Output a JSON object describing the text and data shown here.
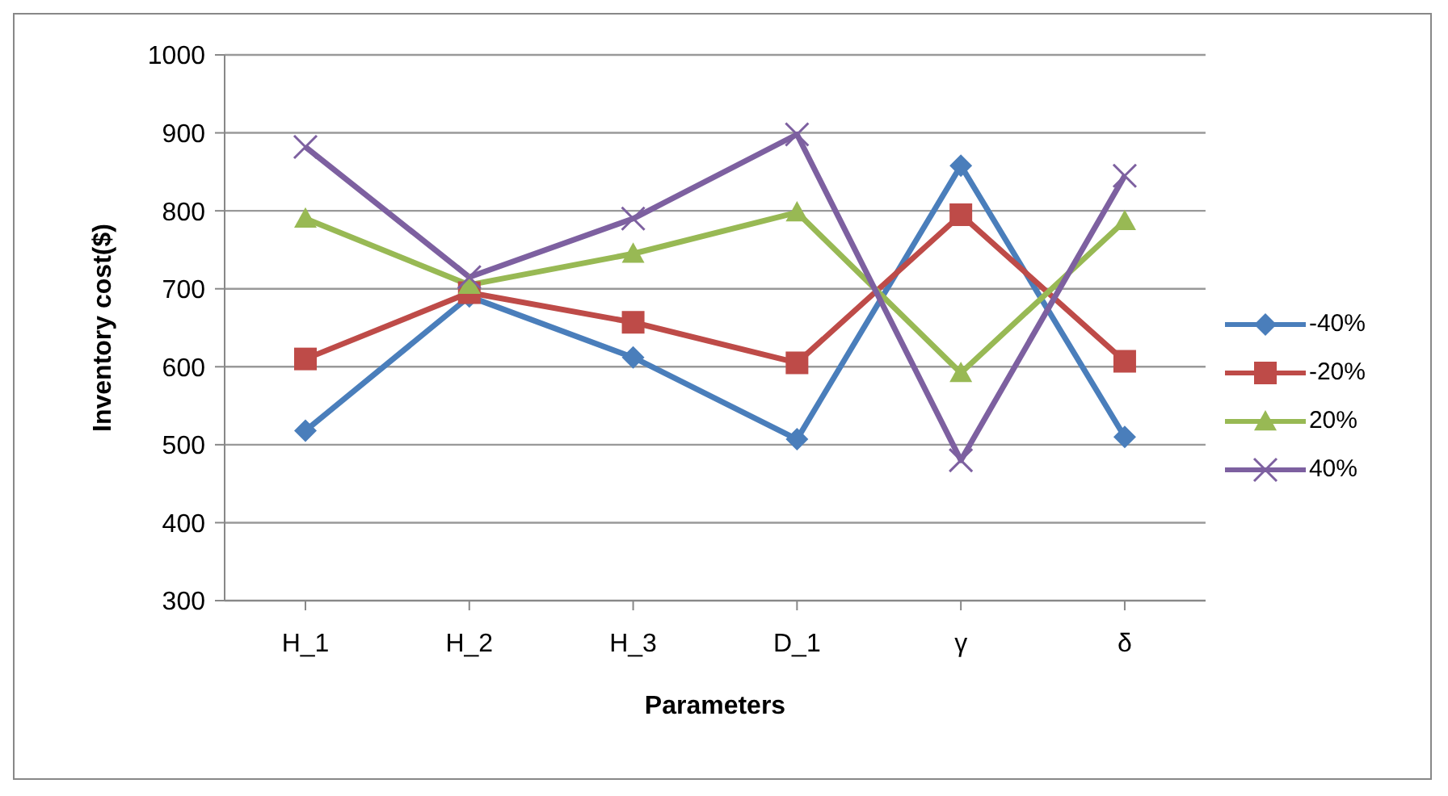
{
  "chart_data": {
    "type": "line",
    "xlabel": "Parameters",
    "ylabel": "Inventory cost($)",
    "categories": [
      "H_1",
      "H_2",
      "H_3",
      "D_1",
      "γ",
      "δ"
    ],
    "series": [
      {
        "name": "-40%",
        "color": "#4a7ebb",
        "marker": "diamond",
        "values": [
          518,
          690,
          612,
          507,
          858,
          510
        ]
      },
      {
        "name": "-20%",
        "color": "#be4b48",
        "marker": "square",
        "values": [
          610,
          695,
          657,
          605,
          795,
          607
        ]
      },
      {
        "name": "20%",
        "color": "#98b954",
        "marker": "triangle",
        "values": [
          790,
          705,
          745,
          798,
          592,
          787
        ]
      },
      {
        "name": "40%",
        "color": "#7d60a0",
        "marker": "cross",
        "values": [
          882,
          715,
          790,
          898,
          480,
          845
        ]
      }
    ],
    "ylim": [
      300,
      1000
    ],
    "yticks": [
      300,
      400,
      500,
      600,
      700,
      800,
      900,
      1000
    ],
    "grid": "y",
    "legend": "right",
    "line_style": "solid"
  }
}
